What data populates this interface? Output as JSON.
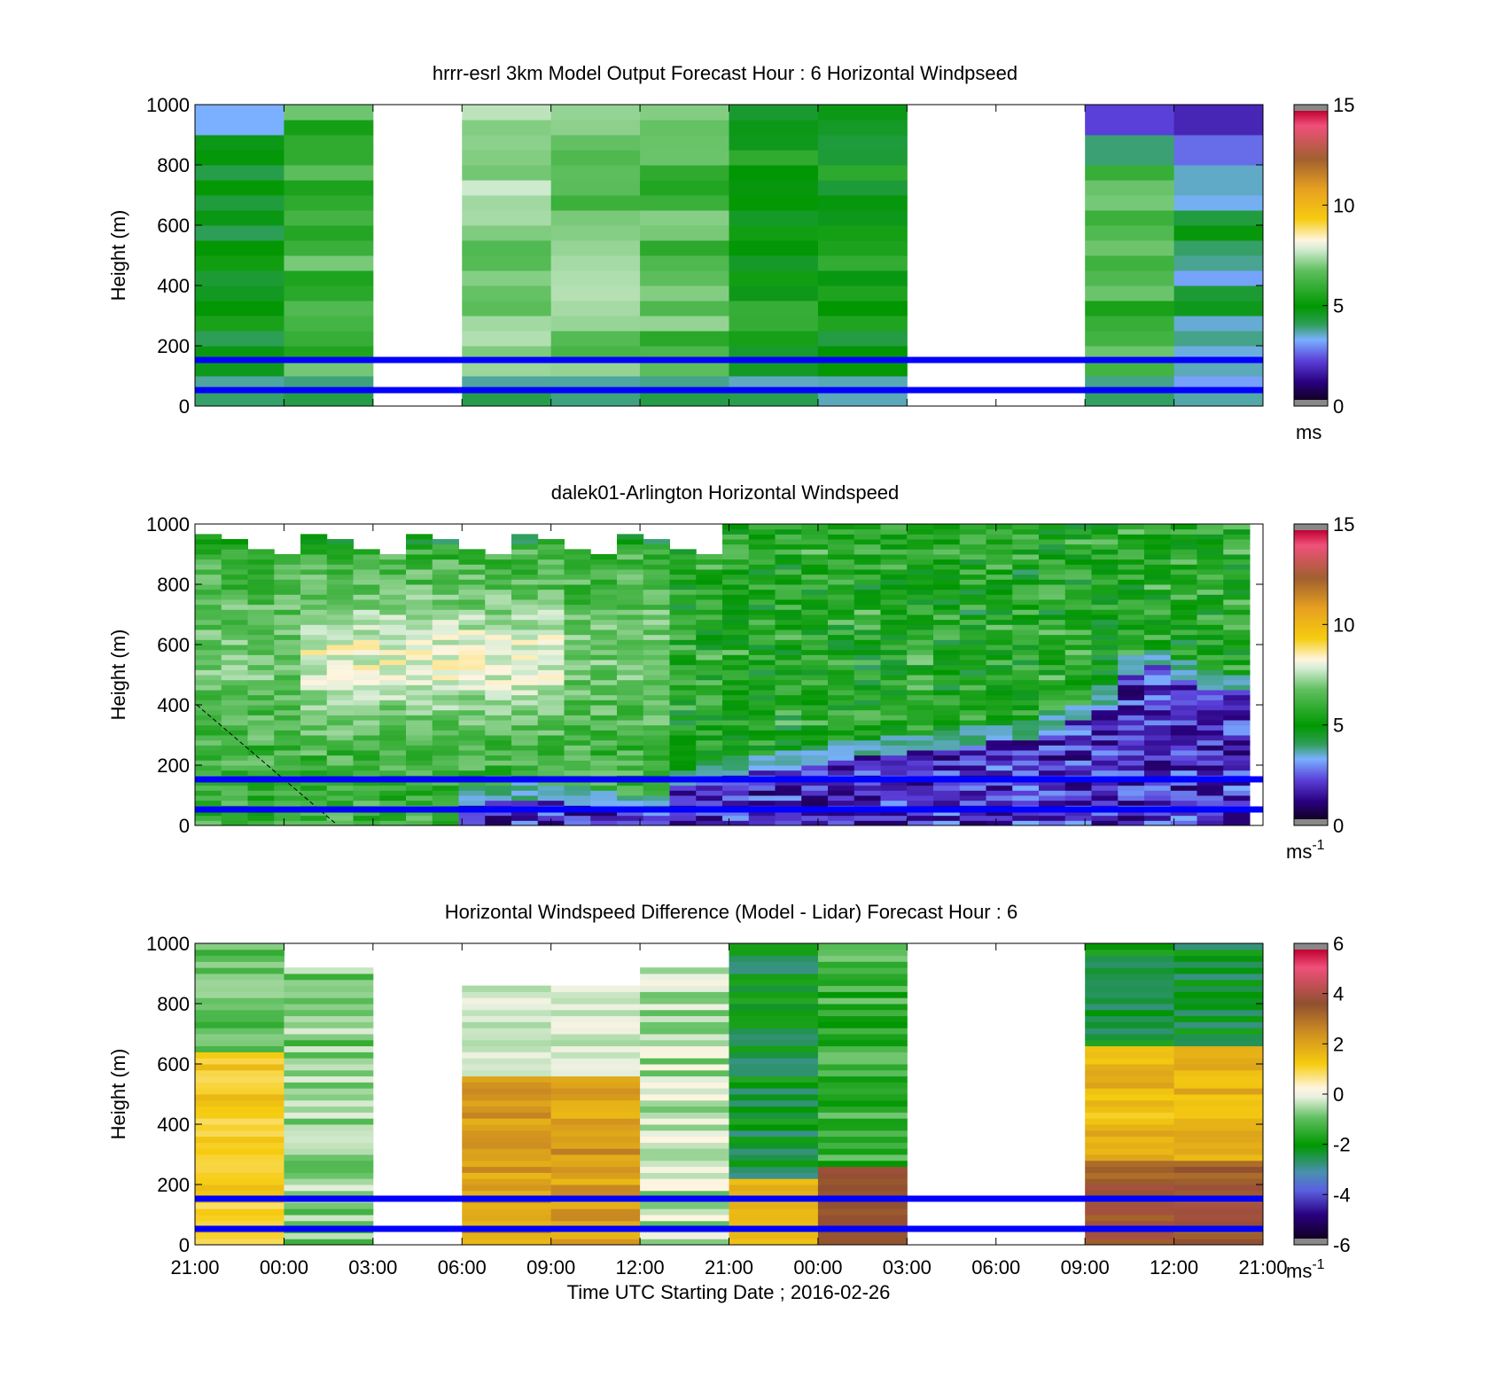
{
  "chart_data": [
    {
      "type": "heatmap",
      "title": "hrrr-esrl 3km Model Output   Forecast Hour : 6 Horizontal Windpseed",
      "ylabel": "Height (m)",
      "ylim": [
        0,
        1000
      ],
      "yticks": [
        "0",
        "200",
        "400",
        "600",
        "800",
        "1000"
      ],
      "colorbar": {
        "ticks": [
          "0",
          "5",
          "10",
          "15"
        ],
        "range": [
          0,
          15
        ],
        "unit": "ms",
        "unit_sup": ""
      },
      "reference_lines_m": [
        50,
        150
      ],
      "time_columns": [
        "21:00",
        "00:00",
        "03:00",
        "06:00",
        "09:00",
        "12:00",
        "21:00",
        "00:00",
        "03:00",
        "06:00",
        "09:00",
        "12:00"
      ],
      "blank_columns": [
        2,
        8,
        9
      ],
      "column_mean_speed_ms": [
        4.3,
        5.5,
        null,
        6.5,
        6.2,
        5.8,
        4.8,
        4.6,
        null,
        null,
        5.5,
        3.6
      ]
    },
    {
      "type": "heatmap",
      "title": "dalek01-Arlington  Horizontal Windspeed",
      "ylabel": "Height (m)",
      "ylim": [
        0,
        1000
      ],
      "yticks": [
        "0",
        "200",
        "400",
        "600",
        "800",
        "1000"
      ],
      "colorbar": {
        "ticks": [
          "0",
          "5",
          "10",
          "15"
        ],
        "range": [
          0,
          15
        ],
        "unit": "ms",
        "unit_sup": "-1"
      },
      "reference_lines_m": [
        50,
        150
      ],
      "time_range_hours": [
        0,
        48
      ],
      "low_level_slow_layer_top_m": [
        0,
        0,
        0,
        0,
        0,
        0,
        0,
        0,
        0,
        0,
        60,
        70,
        80,
        70,
        60,
        50,
        40,
        30,
        120,
        140,
        160,
        170,
        180,
        200,
        210,
        220,
        230,
        240,
        250,
        260,
        270,
        280,
        300,
        340,
        400,
        500,
        520,
        480,
        450,
        440
      ]
    },
    {
      "type": "heatmap",
      "title": "Horizontal Windspeed Difference (Model - Lidar) Forecast Hour : 6",
      "ylabel": "Height (m)",
      "xlabel": "Time UTC  Starting Date ; 2016-02-26",
      "ylim": [
        0,
        1000
      ],
      "yticks": [
        "0",
        "200",
        "400",
        "600",
        "800",
        "1000"
      ],
      "xticks": [
        "21:00",
        "00:00",
        "03:00",
        "06:00",
        "09:00",
        "12:00",
        "21:00",
        "00:00",
        "03:00",
        "06:00",
        "09:00",
        "12:00",
        "21:00"
      ],
      "colorbar": {
        "ticks": [
          "-6",
          "-4",
          "-2",
          "0",
          "2",
          "4",
          "6"
        ],
        "range": [
          -6,
          6
        ],
        "unit": "ms",
        "unit_sup": "-1"
      },
      "reference_lines_m": [
        50,
        150
      ],
      "column_top_m": [
        1000,
        910,
        null,
        860,
        860,
        910,
        1000,
        1000,
        null,
        null,
        1000,
        1000
      ],
      "column_mean_difference_ms": [
        0.8,
        -1.0,
        null,
        1.4,
        1.3,
        -0.6,
        -2.2,
        -1.6,
        null,
        null,
        0.6,
        0.3
      ]
    }
  ]
}
